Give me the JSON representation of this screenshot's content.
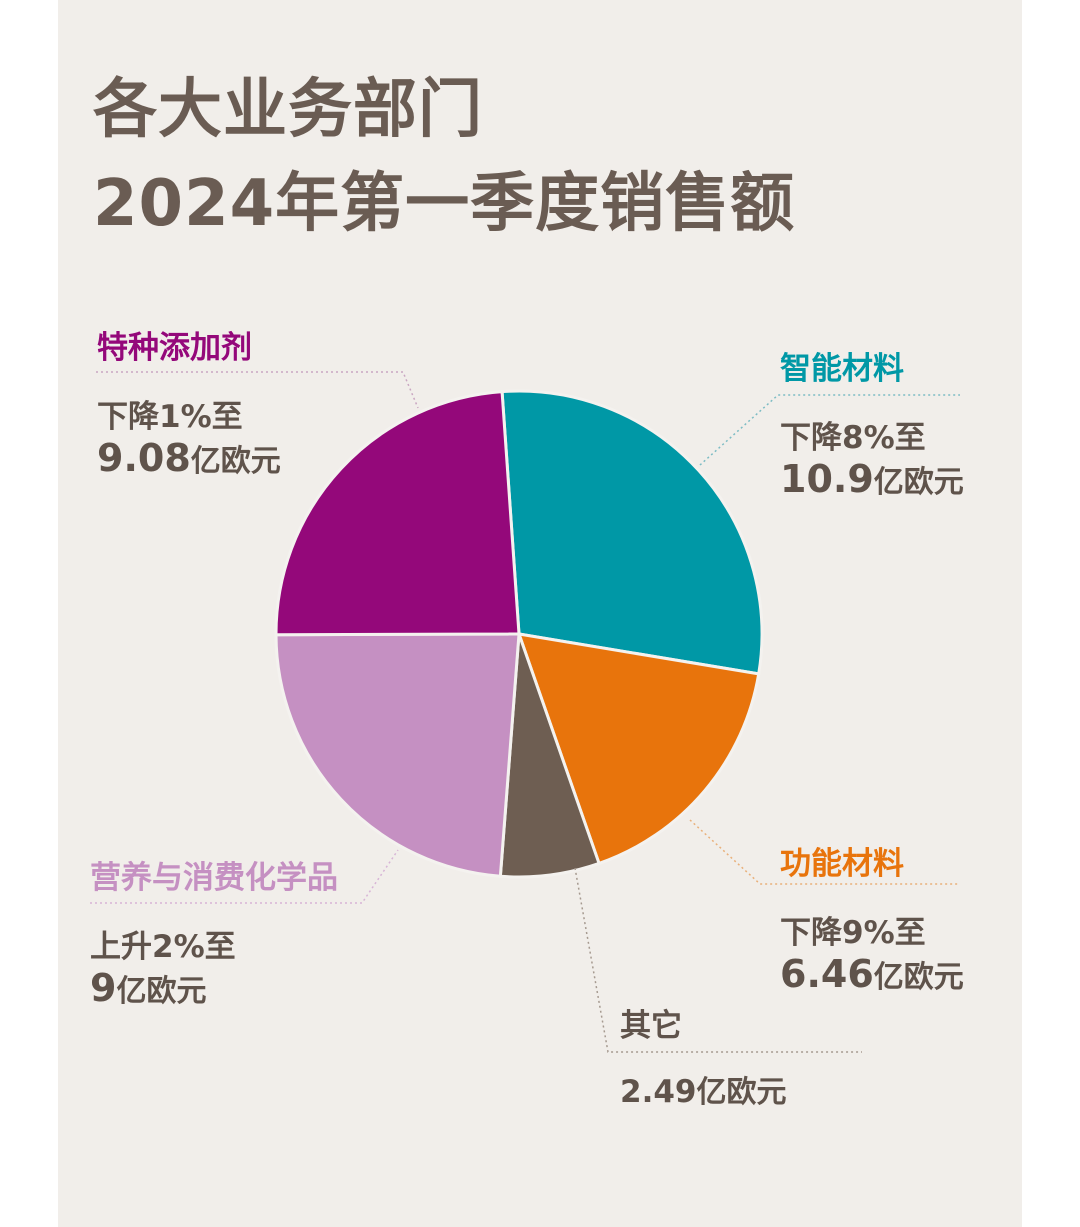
{
  "title": {
    "line1": "各大业务部门",
    "line2": "2024年第一季度销售额"
  },
  "colors": {
    "background": "#f1eeea",
    "title": "#6a5c53",
    "text": "#5f534b",
    "specialty_additives": "#94087a",
    "smart_materials": "#0098a6",
    "performance_materials": "#e8740c",
    "other": "#6e5e52",
    "nutrition": "#c590c2"
  },
  "segments": [
    {
      "name": "特种添加剂",
      "change_text": "下降1%至",
      "amount_text": "9.08",
      "unit": "亿欧元"
    },
    {
      "name": "智能材料",
      "change_text": "下降8%至",
      "amount_text": "10.9",
      "unit": "亿欧元"
    },
    {
      "name": "功能材料",
      "change_text": "下降9%至",
      "amount_text": "6.46",
      "unit": "亿欧元"
    },
    {
      "name": "其它",
      "amount_text": "2.49",
      "unit": "亿欧元"
    },
    {
      "name": "营养与消费化学品",
      "change_text": "上升2%至",
      "amount_text": "9",
      "unit": "亿欧元"
    }
  ],
  "chart_data": {
    "type": "pie",
    "title": "各大业务部门 2024年第一季度销售额",
    "start_angle_deg": -4,
    "direction": "clockwise",
    "labels": [
      "智能材料",
      "功能材料",
      "其它",
      "营养与消费化学品",
      "特种添加剂"
    ],
    "values": [
      10.9,
      6.46,
      2.49,
      9,
      9.08
    ],
    "unit": "亿欧元",
    "colors": [
      "#0098a6",
      "#e8740c",
      "#6e5e52",
      "#c590c2",
      "#94087a"
    ]
  }
}
